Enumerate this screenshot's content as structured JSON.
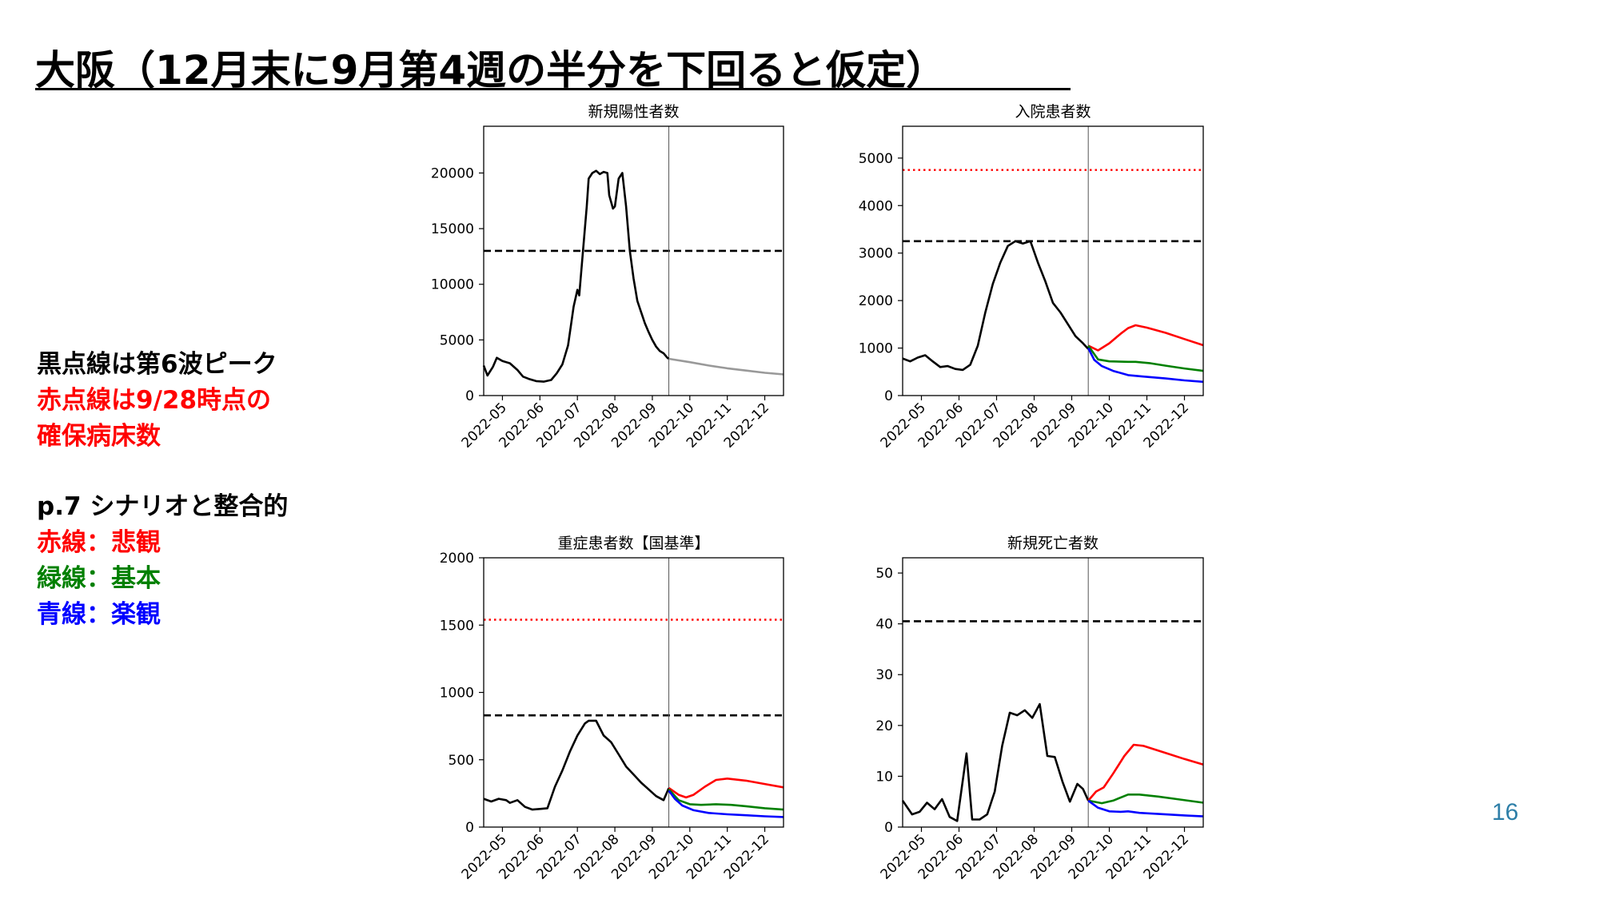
{
  "title": "大阪（12月末に9月第4週の半分を下回ると仮定）",
  "notes": {
    "line1": "黒点線は第6波ピーク",
    "line2": "赤点線は9/28時点の",
    "line3": "確保病床数",
    "line4": "p.7 シナリオと整合的",
    "line5": "赤線：悲観",
    "line6": "緑線：基本",
    "line7": "青線：楽観"
  },
  "page_number": "16",
  "colors": {
    "red": "#ff0000",
    "green": "#008000",
    "blue": "#0000ff",
    "black": "#000000",
    "projection_gray": "#999999",
    "page_number": "#2e7fa8"
  },
  "chart_data": [
    {
      "type": "line",
      "title": "新規陽性者数",
      "x_labels": [
        "2022-05",
        "2022-06",
        "2022-07",
        "2022-08",
        "2022-09",
        "2022-10",
        "2022-11",
        "2022-12"
      ],
      "xlim_months": [
        0.0,
        8.0
      ],
      "ylim": [
        0,
        24200
      ],
      "yticks": [
        0,
        5000,
        10000,
        15000,
        20000
      ],
      "ytick_labels": [
        "0",
        "5000",
        "10000",
        "15000",
        "20000"
      ],
      "vline": 4.94,
      "hlines": [
        {
          "y": 13000,
          "style": "dashed",
          "color": "black"
        }
      ],
      "series": [
        {
          "kind": "observed",
          "color": "black",
          "points": [
            [
              0.0,
              2700
            ],
            [
              0.1,
              1800
            ],
            [
              0.25,
              2600
            ],
            [
              0.35,
              3400
            ],
            [
              0.5,
              3100
            ],
            [
              0.7,
              2900
            ],
            [
              0.9,
              2300
            ],
            [
              1.05,
              1700
            ],
            [
              1.2,
              1500
            ],
            [
              1.4,
              1300
            ],
            [
              1.6,
              1250
            ],
            [
              1.8,
              1400
            ],
            [
              1.95,
              2000
            ],
            [
              2.1,
              2800
            ],
            [
              2.25,
              4500
            ],
            [
              2.4,
              8000
            ],
            [
              2.5,
              9500
            ],
            [
              2.55,
              9000
            ],
            [
              2.65,
              13000
            ],
            [
              2.75,
              17000
            ],
            [
              2.8,
              19500
            ],
            [
              2.9,
              20000
            ],
            [
              3.0,
              20200
            ],
            [
              3.1,
              19900
            ],
            [
              3.2,
              20100
            ],
            [
              3.3,
              20000
            ],
            [
              3.35,
              18000
            ],
            [
              3.45,
              16800
            ],
            [
              3.5,
              17000
            ],
            [
              3.6,
              19500
            ],
            [
              3.7,
              20000
            ],
            [
              3.8,
              17000
            ],
            [
              3.9,
              13000
            ],
            [
              4.0,
              10500
            ],
            [
              4.1,
              8500
            ],
            [
              4.2,
              7500
            ],
            [
              4.3,
              6500
            ],
            [
              4.4,
              5700
            ],
            [
              4.5,
              5000
            ],
            [
              4.6,
              4400
            ],
            [
              4.7,
              4000
            ],
            [
              4.8,
              3800
            ],
            [
              4.9,
              3400
            ],
            [
              4.94,
              3300
            ]
          ]
        },
        {
          "kind": "projection",
          "color": "projection_gray",
          "points": [
            [
              4.94,
              3300
            ],
            [
              5.5,
              3000
            ],
            [
              6.0,
              2700
            ],
            [
              6.5,
              2450
            ],
            [
              7.0,
              2250
            ],
            [
              7.5,
              2050
            ],
            [
              8.0,
              1900
            ]
          ]
        }
      ]
    },
    {
      "type": "line",
      "title": "入院患者数",
      "x_labels": [
        "2022-05",
        "2022-06",
        "2022-07",
        "2022-08",
        "2022-09",
        "2022-10",
        "2022-11",
        "2022-12"
      ],
      "xlim_months": [
        0.0,
        8.0
      ],
      "ylim": [
        0,
        5670
      ],
      "yticks": [
        0,
        1000,
        2000,
        3000,
        4000,
        5000
      ],
      "ytick_labels": [
        "0",
        "1000",
        "2000",
        "3000",
        "4000",
        "5000"
      ],
      "vline": 4.94,
      "hlines": [
        {
          "y": 3250,
          "style": "dashed",
          "color": "black"
        },
        {
          "y": 4750,
          "style": "dotted",
          "color": "red"
        }
      ],
      "series": [
        {
          "kind": "observed",
          "color": "black",
          "points": [
            [
              0.0,
              780
            ],
            [
              0.2,
              720
            ],
            [
              0.4,
              800
            ],
            [
              0.6,
              850
            ],
            [
              0.8,
              720
            ],
            [
              1.0,
              600
            ],
            [
              1.2,
              620
            ],
            [
              1.4,
              560
            ],
            [
              1.6,
              540
            ],
            [
              1.8,
              650
            ],
            [
              2.0,
              1050
            ],
            [
              2.2,
              1750
            ],
            [
              2.4,
              2350
            ],
            [
              2.6,
              2800
            ],
            [
              2.8,
              3150
            ],
            [
              3.0,
              3250
            ],
            [
              3.2,
              3200
            ],
            [
              3.4,
              3250
            ],
            [
              3.6,
              2800
            ],
            [
              3.8,
              2400
            ],
            [
              4.0,
              1950
            ],
            [
              4.2,
              1750
            ],
            [
              4.4,
              1500
            ],
            [
              4.6,
              1250
            ],
            [
              4.8,
              1100
            ],
            [
              4.94,
              980
            ]
          ]
        },
        {
          "kind": "pessimistic",
          "color": "red",
          "points": [
            [
              4.94,
              1050
            ],
            [
              5.2,
              950
            ],
            [
              5.5,
              1100
            ],
            [
              5.8,
              1300
            ],
            [
              6.0,
              1420
            ],
            [
              6.2,
              1480
            ],
            [
              6.5,
              1430
            ],
            [
              7.0,
              1320
            ],
            [
              7.5,
              1190
            ],
            [
              8.0,
              1060
            ]
          ]
        },
        {
          "kind": "base",
          "color": "green",
          "points": [
            [
              4.94,
              1050
            ],
            [
              5.2,
              760
            ],
            [
              5.5,
              720
            ],
            [
              6.0,
              710
            ],
            [
              6.2,
              710
            ],
            [
              6.6,
              680
            ],
            [
              7.0,
              630
            ],
            [
              7.5,
              570
            ],
            [
              8.0,
              520
            ]
          ]
        },
        {
          "kind": "optimistic",
          "color": "blue",
          "points": [
            [
              4.94,
              1000
            ],
            [
              5.1,
              750
            ],
            [
              5.3,
              620
            ],
            [
              5.6,
              520
            ],
            [
              6.0,
              430
            ],
            [
              6.4,
              400
            ],
            [
              7.0,
              360
            ],
            [
              7.5,
              320
            ],
            [
              8.0,
              290
            ]
          ]
        }
      ]
    },
    {
      "type": "line",
      "title": "重症患者数【国基準】",
      "x_labels": [
        "2022-05",
        "2022-06",
        "2022-07",
        "2022-08",
        "2022-09",
        "2022-10",
        "2022-11",
        "2022-12"
      ],
      "xlim_months": [
        0.0,
        8.0
      ],
      "ylim": [
        0,
        2000
      ],
      "yticks": [
        0,
        500,
        1000,
        1500,
        2000
      ],
      "ytick_labels": [
        "0",
        "500",
        "1000",
        "1500",
        "2000"
      ],
      "vline": 4.94,
      "hlines": [
        {
          "y": 830,
          "style": "dashed",
          "color": "black"
        },
        {
          "y": 1540,
          "style": "dotted",
          "color": "red"
        }
      ],
      "series": [
        {
          "kind": "observed",
          "color": "black",
          "points": [
            [
              0.0,
              210
            ],
            [
              0.2,
              190
            ],
            [
              0.4,
              210
            ],
            [
              0.6,
              200
            ],
            [
              0.7,
              180
            ],
            [
              0.9,
              200
            ],
            [
              1.1,
              150
            ],
            [
              1.3,
              130
            ],
            [
              1.5,
              135
            ],
            [
              1.7,
              140
            ],
            [
              1.9,
              300
            ],
            [
              2.1,
              420
            ],
            [
              2.3,
              560
            ],
            [
              2.5,
              680
            ],
            [
              2.7,
              770
            ],
            [
              2.8,
              790
            ],
            [
              3.0,
              790
            ],
            [
              3.2,
              680
            ],
            [
              3.4,
              630
            ],
            [
              3.6,
              540
            ],
            [
              3.8,
              450
            ],
            [
              4.0,
              390
            ],
            [
              4.2,
              330
            ],
            [
              4.4,
              280
            ],
            [
              4.6,
              230
            ],
            [
              4.8,
              200
            ],
            [
              4.94,
              290
            ]
          ]
        },
        {
          "kind": "pessimistic",
          "color": "red",
          "points": [
            [
              4.94,
              290
            ],
            [
              5.2,
              240
            ],
            [
              5.4,
              220
            ],
            [
              5.6,
              240
            ],
            [
              5.9,
              300
            ],
            [
              6.2,
              350
            ],
            [
              6.5,
              360
            ],
            [
              7.0,
              345
            ],
            [
              7.5,
              320
            ],
            [
              8.0,
              295
            ]
          ]
        },
        {
          "kind": "base",
          "color": "green",
          "points": [
            [
              4.94,
              280
            ],
            [
              5.2,
              200
            ],
            [
              5.5,
              170
            ],
            [
              5.8,
              165
            ],
            [
              6.2,
              170
            ],
            [
              6.6,
              165
            ],
            [
              7.0,
              155
            ],
            [
              7.5,
              140
            ],
            [
              8.0,
              130
            ]
          ]
        },
        {
          "kind": "optimistic",
          "color": "blue",
          "points": [
            [
              4.94,
              270
            ],
            [
              5.1,
              210
            ],
            [
              5.3,
              160
            ],
            [
              5.6,
              125
            ],
            [
              6.0,
              105
            ],
            [
              6.5,
              95
            ],
            [
              7.0,
              88
            ],
            [
              7.5,
              80
            ],
            [
              8.0,
              75
            ]
          ]
        }
      ]
    },
    {
      "type": "line",
      "title": "新規死亡者数",
      "x_labels": [
        "2022-05",
        "2022-06",
        "2022-07",
        "2022-08",
        "2022-09",
        "2022-10",
        "2022-11",
        "2022-12"
      ],
      "xlim_months": [
        0.0,
        8.0
      ],
      "ylim": [
        0,
        53
      ],
      "yticks": [
        0,
        10,
        20,
        30,
        40,
        50
      ],
      "ytick_labels": [
        "0",
        "10",
        "20",
        "30",
        "40",
        "50"
      ],
      "vline": 4.94,
      "hlines": [
        {
          "y": 40.5,
          "style": "dashed",
          "color": "black"
        }
      ],
      "series": [
        {
          "kind": "observed",
          "color": "black",
          "points": [
            [
              0.0,
              5.2
            ],
            [
              0.25,
              2.5
            ],
            [
              0.45,
              3.0
            ],
            [
              0.65,
              4.8
            ],
            [
              0.85,
              3.5
            ],
            [
              1.05,
              5.5
            ],
            [
              1.25,
              2.0
            ],
            [
              1.45,
              1.2
            ],
            [
              1.7,
              14.5
            ],
            [
              1.85,
              1.5
            ],
            [
              2.05,
              1.5
            ],
            [
              2.25,
              2.5
            ],
            [
              2.45,
              7.0
            ],
            [
              2.65,
              16.0
            ],
            [
              2.85,
              22.5
            ],
            [
              3.05,
              22.0
            ],
            [
              3.25,
              23.0
            ],
            [
              3.45,
              21.5
            ],
            [
              3.65,
              24.2
            ],
            [
              3.85,
              14.0
            ],
            [
              4.05,
              13.8
            ],
            [
              4.25,
              9.0
            ],
            [
              4.45,
              5.0
            ],
            [
              4.65,
              8.5
            ],
            [
              4.8,
              7.5
            ],
            [
              4.94,
              5.2
            ]
          ]
        },
        {
          "kind": "pessimistic",
          "color": "red",
          "points": [
            [
              4.94,
              5.2
            ],
            [
              5.15,
              7.0
            ],
            [
              5.35,
              7.8
            ],
            [
              5.6,
              10.5
            ],
            [
              5.9,
              14.0
            ],
            [
              6.15,
              16.2
            ],
            [
              6.4,
              16.0
            ],
            [
              7.0,
              14.6
            ],
            [
              7.5,
              13.4
            ],
            [
              8.0,
              12.3
            ]
          ]
        },
        {
          "kind": "base",
          "color": "green",
          "points": [
            [
              4.94,
              5.2
            ],
            [
              5.3,
              4.7
            ],
            [
              5.6,
              5.2
            ],
            [
              6.0,
              6.4
            ],
            [
              6.3,
              6.4
            ],
            [
              6.8,
              6.0
            ],
            [
              7.3,
              5.5
            ],
            [
              8.0,
              4.8
            ]
          ]
        },
        {
          "kind": "optimistic",
          "color": "blue",
          "points": [
            [
              4.94,
              5.2
            ],
            [
              5.2,
              3.8
            ],
            [
              5.5,
              3.1
            ],
            [
              5.8,
              3.0
            ],
            [
              6.0,
              3.1
            ],
            [
              6.3,
              2.8
            ],
            [
              7.0,
              2.5
            ],
            [
              7.5,
              2.3
            ],
            [
              8.0,
              2.1
            ]
          ]
        }
      ]
    }
  ]
}
